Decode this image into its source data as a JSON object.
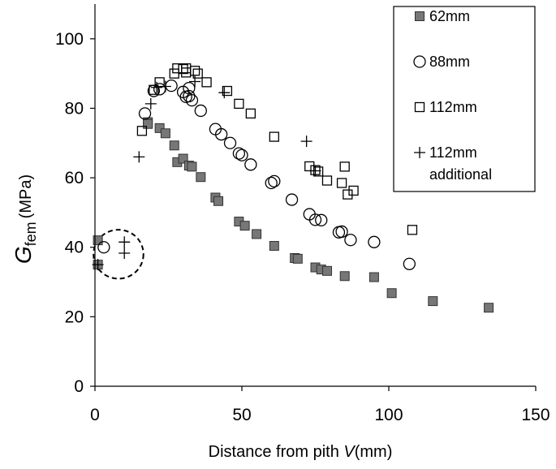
{
  "chart_data": {
    "type": "scatter",
    "xlabel": "Distance from pith ",
    "xlabel_italic": "V",
    "xlabel_unit": "(mm)",
    "ylabel_main": "G",
    "ylabel_sub": "fem",
    "ylabel_unit": "(MPa)",
    "xlim": [
      0,
      150
    ],
    "ylim": [
      0,
      110
    ],
    "x_ticks": [
      0,
      50,
      100,
      150
    ],
    "y_ticks": [
      0,
      20,
      40,
      60,
      80,
      100
    ],
    "x_tick_labels": [
      "0",
      "50",
      "100",
      "150"
    ],
    "y_tick_labels": [
      "0",
      "20",
      "40",
      "60",
      "80",
      "100"
    ],
    "grid": false,
    "legend_position": "top-right",
    "annotation": {
      "shape": "dashed-circle",
      "center": [
        8,
        38
      ],
      "radius_x": 8.5
    },
    "series": [
      {
        "name": "62mm",
        "marker": "filled-square",
        "color": "#777777",
        "points": [
          [
            1,
            42
          ],
          [
            1,
            35
          ],
          [
            18,
            76
          ],
          [
            18,
            75.5
          ],
          [
            22,
            74.3
          ],
          [
            24,
            72.8
          ],
          [
            27,
            69.3
          ],
          [
            28,
            64.5
          ],
          [
            30,
            65.5
          ],
          [
            32,
            63.5
          ],
          [
            33,
            63.2
          ],
          [
            36,
            60.2
          ],
          [
            41,
            54.3
          ],
          [
            42,
            53.3
          ],
          [
            49,
            47.4
          ],
          [
            51,
            46.2
          ],
          [
            55,
            43.8
          ],
          [
            61,
            40.4
          ],
          [
            68,
            36.9
          ],
          [
            69,
            36.7
          ],
          [
            75,
            34.2
          ],
          [
            77,
            33.6
          ],
          [
            79,
            33.2
          ],
          [
            85,
            31.7
          ],
          [
            95,
            31.4
          ],
          [
            101,
            26.8
          ],
          [
            115,
            24.5
          ],
          [
            134,
            22.6
          ]
        ]
      },
      {
        "name": "88mm",
        "marker": "open-circle",
        "color": "#000000",
        "points": [
          [
            3,
            40
          ],
          [
            17,
            78.5
          ],
          [
            20,
            85
          ],
          [
            22,
            85.5
          ],
          [
            26,
            86.5
          ],
          [
            30,
            84.7
          ],
          [
            31,
            83.3
          ],
          [
            32,
            85.8
          ],
          [
            32,
            83.5
          ],
          [
            33,
            82.3
          ],
          [
            36,
            79.3
          ],
          [
            41,
            74
          ],
          [
            43,
            72.5
          ],
          [
            46,
            70
          ],
          [
            49,
            67
          ],
          [
            50,
            66.5
          ],
          [
            53,
            63.8
          ],
          [
            60,
            58.5
          ],
          [
            61,
            59
          ],
          [
            67,
            53.7
          ],
          [
            73,
            49.5
          ],
          [
            75,
            47.9
          ],
          [
            77,
            47.8
          ],
          [
            83,
            44.3
          ],
          [
            84,
            44.5
          ],
          [
            87,
            42.1
          ],
          [
            95,
            41.5
          ],
          [
            107,
            35.2
          ]
        ]
      },
      {
        "name": "112mm",
        "marker": "open-square",
        "color": "#000000",
        "points": [
          [
            16,
            73.5
          ],
          [
            20,
            85.3
          ],
          [
            22,
            87.5
          ],
          [
            27,
            90
          ],
          [
            28,
            91.5
          ],
          [
            30,
            91.3
          ],
          [
            31,
            91.5
          ],
          [
            31,
            90.3
          ],
          [
            34,
            90.8
          ],
          [
            35,
            90
          ],
          [
            38,
            87.5
          ],
          [
            45,
            85
          ],
          [
            49,
            81.3
          ],
          [
            53,
            78.5
          ],
          [
            61,
            71.8
          ],
          [
            73,
            63.3
          ],
          [
            75,
            62.2
          ],
          [
            76,
            61.8
          ],
          [
            79,
            59.2
          ],
          [
            84,
            58.5
          ],
          [
            85,
            63.2
          ],
          [
            86,
            55.2
          ],
          [
            88,
            56.3
          ],
          [
            108,
            45
          ]
        ]
      },
      {
        "name": "112mm additional",
        "name_lines": [
          "112mm",
          "additional"
        ],
        "marker": "plus",
        "color": "#000000",
        "points": [
          [
            1,
            35
          ],
          [
            10,
            41.5
          ],
          [
            10,
            38.3
          ],
          [
            15,
            66
          ],
          [
            19,
            81.3
          ],
          [
            21,
            86
          ],
          [
            24,
            86.3
          ],
          [
            34,
            87.7
          ],
          [
            44,
            84.5
          ],
          [
            72,
            70.5
          ],
          [
            75,
            62
          ]
        ]
      }
    ]
  }
}
